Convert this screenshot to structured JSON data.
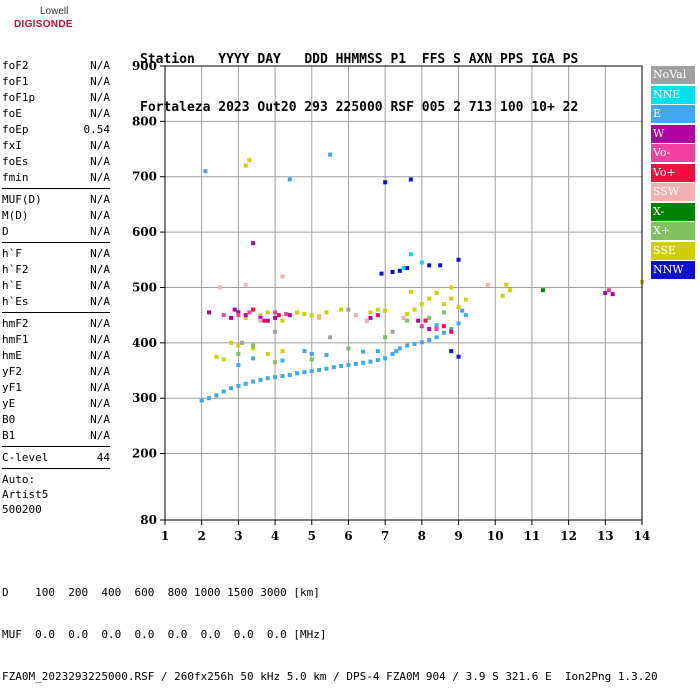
{
  "logo": {
    "line1": "Lowell",
    "line2": "DIGISONDE"
  },
  "header": {
    "row1": "Station   YYYY DAY   DDD HHMMSS P1  FFS S AXN PPS IGA PS",
    "row2": "Fortaleza 2023 Out20 293 225000 RSF 005 2 713 100 10+ 22"
  },
  "params": {
    "group1": [
      {
        "label": "foF2",
        "value": "N/A"
      },
      {
        "label": "foF1",
        "value": "N/A"
      },
      {
        "label": "foF1p",
        "value": "N/A"
      },
      {
        "label": "foE",
        "value": "N/A"
      },
      {
        "label": "foEp",
        "value": "0.54"
      },
      {
        "label": "fxI",
        "value": "N/A"
      },
      {
        "label": "foEs",
        "value": "N/A"
      },
      {
        "label": "fmin",
        "value": "N/A"
      }
    ],
    "group2": [
      {
        "label": "MUF(D)",
        "value": "N/A"
      },
      {
        "label": "M(D)",
        "value": "N/A"
      },
      {
        "label": "D",
        "value": "N/A"
      }
    ],
    "group3": [
      {
        "label": "h`F",
        "value": "N/A"
      },
      {
        "label": "h`F2",
        "value": "N/A"
      },
      {
        "label": "h`E",
        "value": "N/A"
      },
      {
        "label": "h`Es",
        "value": "N/A"
      }
    ],
    "group4": [
      {
        "label": "hmF2",
        "value": "N/A"
      },
      {
        "label": "hmF1",
        "value": "N/A"
      },
      {
        "label": "hmE",
        "value": "N/A"
      },
      {
        "label": "yF2",
        "value": "N/A"
      },
      {
        "label": "yF1",
        "value": "N/A"
      },
      {
        "label": "yE",
        "value": "N/A"
      },
      {
        "label": "B0",
        "value": "N/A"
      },
      {
        "label": "B1",
        "value": "N/A"
      }
    ],
    "clevel": {
      "label": "C-level",
      "value": "44"
    },
    "auto": [
      "Auto:",
      "Artist5",
      "500200"
    ]
  },
  "legend": [
    {
      "label": "NoVal",
      "color": "#a0a0a0"
    },
    {
      "label": "NNE",
      "color": "#00e0f0"
    },
    {
      "label": "E",
      "color": "#40a8f0"
    },
    {
      "label": "W",
      "color": "#b000a0"
    },
    {
      "label": "Vo-",
      "color": "#f040a0"
    },
    {
      "label": "Vo+",
      "color": "#f01040"
    },
    {
      "label": "SSW",
      "color": "#f0b0b0"
    },
    {
      "label": "X-",
      "color": "#008000"
    },
    {
      "label": "X+",
      "color": "#80c060"
    },
    {
      "label": "SSE",
      "color": "#d0d000"
    },
    {
      "label": "NNW",
      "color": "#1010d0"
    }
  ],
  "bottom": {
    "line1": "D    100  200  400  600  800 1000 1500 3000 [km]",
    "line2": "MUF  0.0  0.0  0.0  0.0  0.0  0.0  0.0  0.0 [MHz]",
    "line3": "FZA0M_2023293225000.RSF / 260fx256h 50 kHz 5.0 km / DPS-4 FZA0M 904 / 3.9 S 321.6 E  Ion2Png 1.3.20"
  },
  "chart_data": {
    "type": "scatter",
    "xlim": [
      1,
      14
    ],
    "ylim": [
      80,
      900
    ],
    "x_ticks": [
      1,
      2,
      3,
      4,
      5,
      6,
      7,
      8,
      9,
      10,
      11,
      12,
      13,
      14
    ],
    "y_ticks": [
      80,
      200,
      300,
      400,
      500,
      600,
      700,
      800,
      900
    ],
    "grid": true,
    "legend_position": "right",
    "series": [
      {
        "name": "E",
        "color": "#40a8f0",
        "points": [
          [
            2.0,
            296
          ],
          [
            2.2,
            300
          ],
          [
            2.4,
            305
          ],
          [
            2.6,
            312
          ],
          [
            2.8,
            318
          ],
          [
            3.0,
            322
          ],
          [
            3.2,
            326
          ],
          [
            3.4,
            330
          ],
          [
            3.6,
            333
          ],
          [
            3.8,
            336
          ],
          [
            4.0,
            338
          ],
          [
            4.2,
            340
          ],
          [
            4.4,
            342
          ],
          [
            4.6,
            345
          ],
          [
            4.8,
            347
          ],
          [
            5.0,
            349
          ],
          [
            5.2,
            351
          ],
          [
            5.4,
            353
          ],
          [
            5.6,
            356
          ],
          [
            5.8,
            358
          ],
          [
            6.0,
            360
          ],
          [
            6.2,
            362
          ],
          [
            6.4,
            364
          ],
          [
            6.6,
            366
          ],
          [
            6.8,
            369
          ],
          [
            7.0,
            372
          ],
          [
            7.2,
            380
          ],
          [
            7.4,
            390
          ],
          [
            7.6,
            395
          ],
          [
            7.8,
            398
          ],
          [
            8.0,
            401
          ],
          [
            8.2,
            405
          ],
          [
            8.4,
            410
          ],
          [
            8.6,
            418
          ],
          [
            8.8,
            425
          ],
          [
            9.0,
            435
          ],
          [
            9.2,
            450
          ],
          [
            4.8,
            385
          ],
          [
            5.0,
            380
          ],
          [
            5.4,
            378
          ],
          [
            6.4,
            384
          ],
          [
            3.0,
            360
          ],
          [
            3.4,
            372
          ],
          [
            4.2,
            368
          ],
          [
            6.8,
            385
          ],
          [
            8.4,
            432
          ],
          [
            9.1,
            458
          ],
          [
            2.1,
            710
          ],
          [
            4.4,
            695
          ],
          [
            5.5,
            740
          ],
          [
            7.3,
            385
          ]
        ]
      },
      {
        "name": "SSE",
        "color": "#d0d000",
        "points": [
          [
            2.8,
            400
          ],
          [
            3.0,
            455
          ],
          [
            3.2,
            445
          ],
          [
            3.4,
            460
          ],
          [
            3.6,
            450
          ],
          [
            3.8,
            455
          ],
          [
            4.2,
            440
          ],
          [
            4.6,
            455
          ],
          [
            4.8,
            452
          ],
          [
            5.0,
            450
          ],
          [
            5.2,
            448
          ],
          [
            5.4,
            455
          ],
          [
            5.8,
            460
          ],
          [
            6.6,
            455
          ],
          [
            6.8,
            460
          ],
          [
            7.0,
            458
          ],
          [
            7.6,
            452
          ],
          [
            7.8,
            460
          ],
          [
            8.0,
            470
          ],
          [
            8.2,
            480
          ],
          [
            8.4,
            490
          ],
          [
            8.6,
            470
          ],
          [
            8.8,
            480
          ],
          [
            9.0,
            465
          ],
          [
            9.2,
            478
          ],
          [
            10.2,
            485
          ],
          [
            10.4,
            495
          ],
          [
            10.3,
            505
          ],
          [
            2.4,
            375
          ],
          [
            2.6,
            370
          ],
          [
            3.0,
            395
          ],
          [
            3.4,
            390
          ],
          [
            3.8,
            380
          ],
          [
            4.2,
            385
          ],
          [
            3.2,
            720
          ],
          [
            3.3,
            730
          ],
          [
            14.0,
            510
          ],
          [
            7.7,
            492
          ],
          [
            8.8,
            500
          ]
        ]
      },
      {
        "name": "X+",
        "color": "#80c060",
        "points": [
          [
            3.0,
            380
          ],
          [
            3.4,
            395
          ],
          [
            4.0,
            365
          ],
          [
            5.0,
            370
          ],
          [
            6.0,
            390
          ],
          [
            7.0,
            410
          ],
          [
            7.6,
            440
          ],
          [
            8.2,
            445
          ],
          [
            8.6,
            455
          ]
        ]
      },
      {
        "name": "W",
        "color": "#b000a0",
        "points": [
          [
            2.2,
            455
          ],
          [
            2.8,
            445
          ],
          [
            3.0,
            455
          ],
          [
            3.2,
            450
          ],
          [
            3.6,
            445
          ],
          [
            3.8,
            440
          ],
          [
            4.0,
            445
          ],
          [
            4.4,
            450
          ],
          [
            6.6,
            445
          ],
          [
            7.9,
            440
          ],
          [
            8.2,
            425
          ],
          [
            13.0,
            490
          ],
          [
            13.2,
            488
          ],
          [
            3.4,
            580
          ],
          [
            2.9,
            460
          ]
        ]
      },
      {
        "name": "Vo-",
        "color": "#f040a0",
        "points": [
          [
            2.6,
            450
          ],
          [
            3.0,
            450
          ],
          [
            3.3,
            455
          ],
          [
            4.0,
            455
          ],
          [
            4.3,
            452
          ],
          [
            6.5,
            440
          ],
          [
            8.0,
            430
          ],
          [
            8.4,
            425
          ],
          [
            13.1,
            495
          ]
        ]
      },
      {
        "name": "Vo+",
        "color": "#f01040",
        "points": [
          [
            3.4,
            460
          ],
          [
            3.7,
            440
          ],
          [
            4.1,
            450
          ],
          [
            6.8,
            450
          ],
          [
            8.1,
            440
          ],
          [
            8.6,
            430
          ],
          [
            8.8,
            420
          ]
        ]
      },
      {
        "name": "SSW",
        "color": "#f0b0b0",
        "points": [
          [
            2.5,
            500
          ],
          [
            3.2,
            505
          ],
          [
            3.6,
            440
          ],
          [
            4.2,
            520
          ],
          [
            5.2,
            445
          ],
          [
            6.2,
            450
          ],
          [
            6.5,
            440
          ],
          [
            7.5,
            445
          ],
          [
            9.8,
            505
          ]
        ]
      },
      {
        "name": "NNW",
        "color": "#1010d0",
        "points": [
          [
            6.9,
            525
          ],
          [
            7.2,
            528
          ],
          [
            7.4,
            530
          ],
          [
            7.6,
            535
          ],
          [
            8.2,
            540
          ],
          [
            8.5,
            540
          ],
          [
            9.0,
            550
          ],
          [
            7.0,
            690
          ],
          [
            7.7,
            695
          ],
          [
            9.0,
            375
          ],
          [
            8.8,
            385
          ]
        ]
      },
      {
        "name": "NNE",
        "color": "#00e0f0",
        "points": [
          [
            7.5,
            535
          ],
          [
            7.7,
            560
          ],
          [
            8.0,
            545
          ]
        ]
      },
      {
        "name": "NoVal",
        "color": "#a0a0a0",
        "points": [
          [
            3.1,
            400
          ],
          [
            4.0,
            420
          ],
          [
            5.5,
            410
          ],
          [
            6.0,
            460
          ],
          [
            7.2,
            420
          ]
        ]
      },
      {
        "name": "X-",
        "color": "#008000",
        "points": [
          [
            11.3,
            495
          ]
        ]
      }
    ]
  }
}
